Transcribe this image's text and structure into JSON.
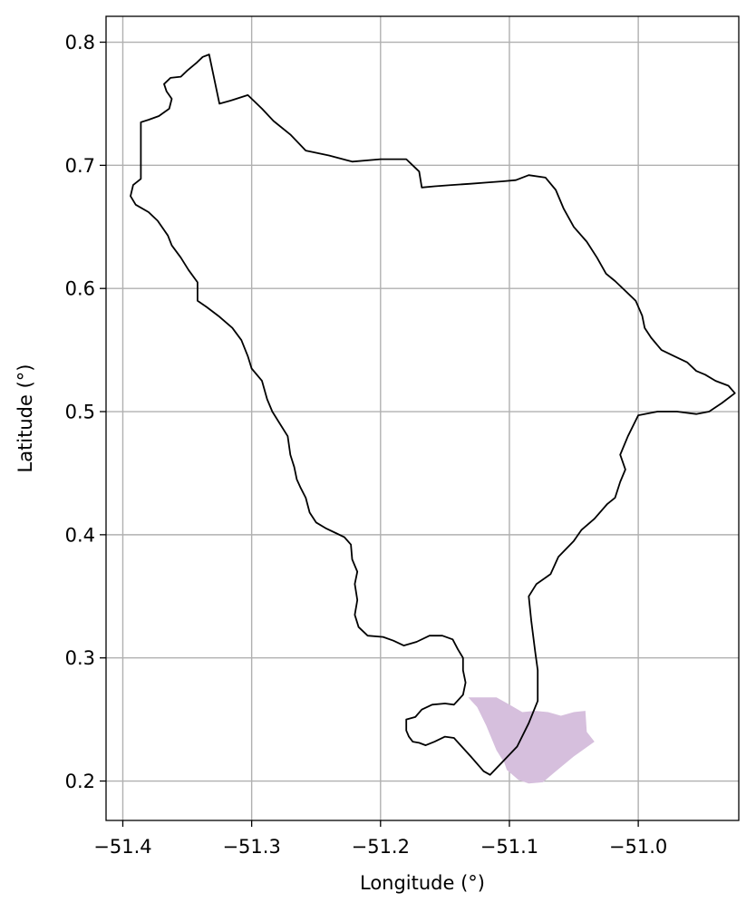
{
  "chart_data": {
    "type": "map",
    "title": "",
    "xlabel": "Longitude (°)",
    "ylabel": "Latitude (°)",
    "xlim": [
      -51.413,
      -50.922
    ],
    "ylim": [
      0.168,
      0.821
    ],
    "grid": true,
    "x_ticks": [
      {
        "value": -51.4,
        "label": "−51.4"
      },
      {
        "value": -51.3,
        "label": "−51.3"
      },
      {
        "value": -51.2,
        "label": "−51.2"
      },
      {
        "value": -51.1,
        "label": "−51.1"
      },
      {
        "value": -51.0,
        "label": "−51.0"
      }
    ],
    "y_ticks": [
      {
        "value": 0.2,
        "label": "0.2"
      },
      {
        "value": 0.3,
        "label": "0.3"
      },
      {
        "value": 0.4,
        "label": "0.4"
      },
      {
        "value": 0.5,
        "label": "0.5"
      },
      {
        "value": 0.6,
        "label": "0.6"
      },
      {
        "value": 0.7,
        "label": "0.7"
      },
      {
        "value": 0.8,
        "label": "0.8"
      }
    ],
    "colors": {
      "outline": "#000000",
      "fill": "#d6bfdd",
      "grid": "#b0b0b0",
      "frame": "#000000"
    },
    "outline": [
      [
        -51.333,
        0.79
      ],
      [
        -51.338,
        0.788
      ],
      [
        -51.343,
        0.783
      ],
      [
        -51.35,
        0.777
      ],
      [
        -51.355,
        0.772
      ],
      [
        -51.363,
        0.771
      ],
      [
        -51.368,
        0.766
      ],
      [
        -51.366,
        0.76
      ],
      [
        -51.362,
        0.754
      ],
      [
        -51.364,
        0.746
      ],
      [
        -51.372,
        0.74
      ],
      [
        -51.38,
        0.737
      ],
      [
        -51.386,
        0.735
      ],
      [
        -51.386,
        0.689
      ],
      [
        -51.392,
        0.684
      ],
      [
        -51.394,
        0.675
      ],
      [
        -51.39,
        0.668
      ],
      [
        -51.38,
        0.662
      ],
      [
        -51.373,
        0.655
      ],
      [
        -51.365,
        0.643
      ],
      [
        -51.362,
        0.635
      ],
      [
        -51.355,
        0.625
      ],
      [
        -51.349,
        0.615
      ],
      [
        -51.342,
        0.605
      ],
      [
        -51.342,
        0.59
      ],
      [
        -51.335,
        0.585
      ],
      [
        -51.325,
        0.577
      ],
      [
        -51.315,
        0.568
      ],
      [
        -51.308,
        0.558
      ],
      [
        -51.303,
        0.545
      ],
      [
        -51.3,
        0.535
      ],
      [
        -51.292,
        0.525
      ],
      [
        -51.288,
        0.51
      ],
      [
        -51.284,
        0.5
      ],
      [
        -51.278,
        0.49
      ],
      [
        -51.272,
        0.48
      ],
      [
        -51.27,
        0.465
      ],
      [
        -51.267,
        0.455
      ],
      [
        -51.265,
        0.445
      ],
      [
        -51.262,
        0.438
      ],
      [
        -51.258,
        0.43
      ],
      [
        -51.255,
        0.418
      ],
      [
        -51.25,
        0.41
      ],
      [
        -51.242,
        0.405
      ],
      [
        -51.234,
        0.401
      ],
      [
        -51.228,
        0.398
      ],
      [
        -51.223,
        0.392
      ],
      [
        -51.222,
        0.38
      ],
      [
        -51.218,
        0.37
      ],
      [
        -51.22,
        0.36
      ],
      [
        -51.218,
        0.347
      ],
      [
        -51.22,
        0.335
      ],
      [
        -51.217,
        0.325
      ],
      [
        -51.21,
        0.318
      ],
      [
        -51.198,
        0.317
      ],
      [
        -51.19,
        0.314
      ],
      [
        -51.182,
        0.31
      ],
      [
        -51.172,
        0.313
      ],
      [
        -51.162,
        0.318
      ],
      [
        -51.152,
        0.318
      ],
      [
        -51.144,
        0.315
      ],
      [
        -51.14,
        0.307
      ],
      [
        -51.136,
        0.3
      ],
      [
        -51.136,
        0.29
      ],
      [
        -51.134,
        0.28
      ],
      [
        -51.136,
        0.27
      ],
      [
        -51.143,
        0.262
      ],
      [
        -51.15,
        0.263
      ],
      [
        -51.16,
        0.262
      ],
      [
        -51.168,
        0.258
      ],
      [
        -51.173,
        0.252
      ],
      [
        -51.18,
        0.25
      ],
      [
        -51.18,
        0.241
      ],
      [
        -51.178,
        0.236
      ],
      [
        -51.175,
        0.232
      ],
      [
        -51.17,
        0.231
      ],
      [
        -51.165,
        0.229
      ],
      [
        -51.158,
        0.232
      ],
      [
        -51.15,
        0.236
      ],
      [
        -51.143,
        0.235
      ],
      [
        -51.137,
        0.228
      ],
      [
        -51.13,
        0.22
      ],
      [
        -51.12,
        0.208
      ],
      [
        -51.115,
        0.205
      ],
      [
        -51.104,
        0.217
      ],
      [
        -51.094,
        0.228
      ],
      [
        -51.085,
        0.247
      ],
      [
        -51.078,
        0.265
      ],
      [
        -51.078,
        0.29
      ],
      [
        -51.08,
        0.305
      ],
      [
        -51.083,
        0.33
      ],
      [
        -51.085,
        0.35
      ],
      [
        -51.079,
        0.36
      ],
      [
        -51.068,
        0.368
      ],
      [
        -51.062,
        0.382
      ],
      [
        -51.05,
        0.395
      ],
      [
        -51.044,
        0.404
      ],
      [
        -51.034,
        0.413
      ],
      [
        -51.024,
        0.425
      ],
      [
        -51.018,
        0.43
      ],
      [
        -51.014,
        0.443
      ],
      [
        -51.01,
        0.453
      ],
      [
        -51.014,
        0.465
      ],
      [
        -51.008,
        0.48
      ],
      [
        -51.0,
        0.497
      ],
      [
        -50.985,
        0.5
      ],
      [
        -50.97,
        0.5
      ],
      [
        -50.955,
        0.498
      ],
      [
        -50.945,
        0.5
      ],
      [
        -50.935,
        0.507
      ],
      [
        -50.925,
        0.515
      ],
      [
        -50.93,
        0.521
      ],
      [
        -50.94,
        0.525
      ],
      [
        -50.948,
        0.53
      ],
      [
        -50.955,
        0.533
      ],
      [
        -50.962,
        0.54
      ],
      [
        -50.972,
        0.545
      ],
      [
        -50.982,
        0.55
      ],
      [
        -50.99,
        0.56
      ],
      [
        -50.995,
        0.568
      ],
      [
        -50.997,
        0.578
      ],
      [
        -51.002,
        0.59
      ],
      [
        -51.01,
        0.598
      ],
      [
        -51.018,
        0.606
      ],
      [
        -51.025,
        0.612
      ],
      [
        -51.032,
        0.625
      ],
      [
        -51.04,
        0.638
      ],
      [
        -51.05,
        0.65
      ],
      [
        -51.058,
        0.665
      ],
      [
        -51.064,
        0.68
      ],
      [
        -51.072,
        0.69
      ],
      [
        -51.085,
        0.692
      ],
      [
        -51.095,
        0.688
      ],
      [
        -51.105,
        0.687
      ],
      [
        -51.118,
        0.686
      ],
      [
        -51.13,
        0.685
      ],
      [
        -51.145,
        0.684
      ],
      [
        -51.158,
        0.683
      ],
      [
        -51.168,
        0.682
      ],
      [
        -51.17,
        0.695
      ],
      [
        -51.18,
        0.705
      ],
      [
        -51.2,
        0.705
      ],
      [
        -51.222,
        0.703
      ],
      [
        -51.24,
        0.708
      ],
      [
        -51.258,
        0.712
      ],
      [
        -51.27,
        0.725
      ],
      [
        -51.283,
        0.736
      ],
      [
        -51.292,
        0.746
      ],
      [
        -51.303,
        0.757
      ],
      [
        -51.315,
        0.753
      ],
      [
        -51.325,
        0.75
      ],
      [
        -51.333,
        0.79
      ]
    ],
    "shaded_region": [
      [
        -51.132,
        0.268
      ],
      [
        -51.12,
        0.268
      ],
      [
        -51.11,
        0.268
      ],
      [
        -51.1,
        0.262
      ],
      [
        -51.09,
        0.256
      ],
      [
        -51.08,
        0.257
      ],
      [
        -51.07,
        0.256
      ],
      [
        -51.06,
        0.253
      ],
      [
        -51.05,
        0.256
      ],
      [
        -51.041,
        0.257
      ],
      [
        -51.04,
        0.24
      ],
      [
        -51.034,
        0.232
      ],
      [
        -51.05,
        0.22
      ],
      [
        -51.065,
        0.207
      ],
      [
        -51.074,
        0.199
      ],
      [
        -51.085,
        0.198
      ],
      [
        -51.093,
        0.201
      ],
      [
        -51.102,
        0.209
      ],
      [
        -51.104,
        0.215
      ],
      [
        -51.11,
        0.225
      ],
      [
        -51.118,
        0.245
      ],
      [
        -51.125,
        0.26
      ],
      [
        -51.132,
        0.268
      ]
    ]
  }
}
